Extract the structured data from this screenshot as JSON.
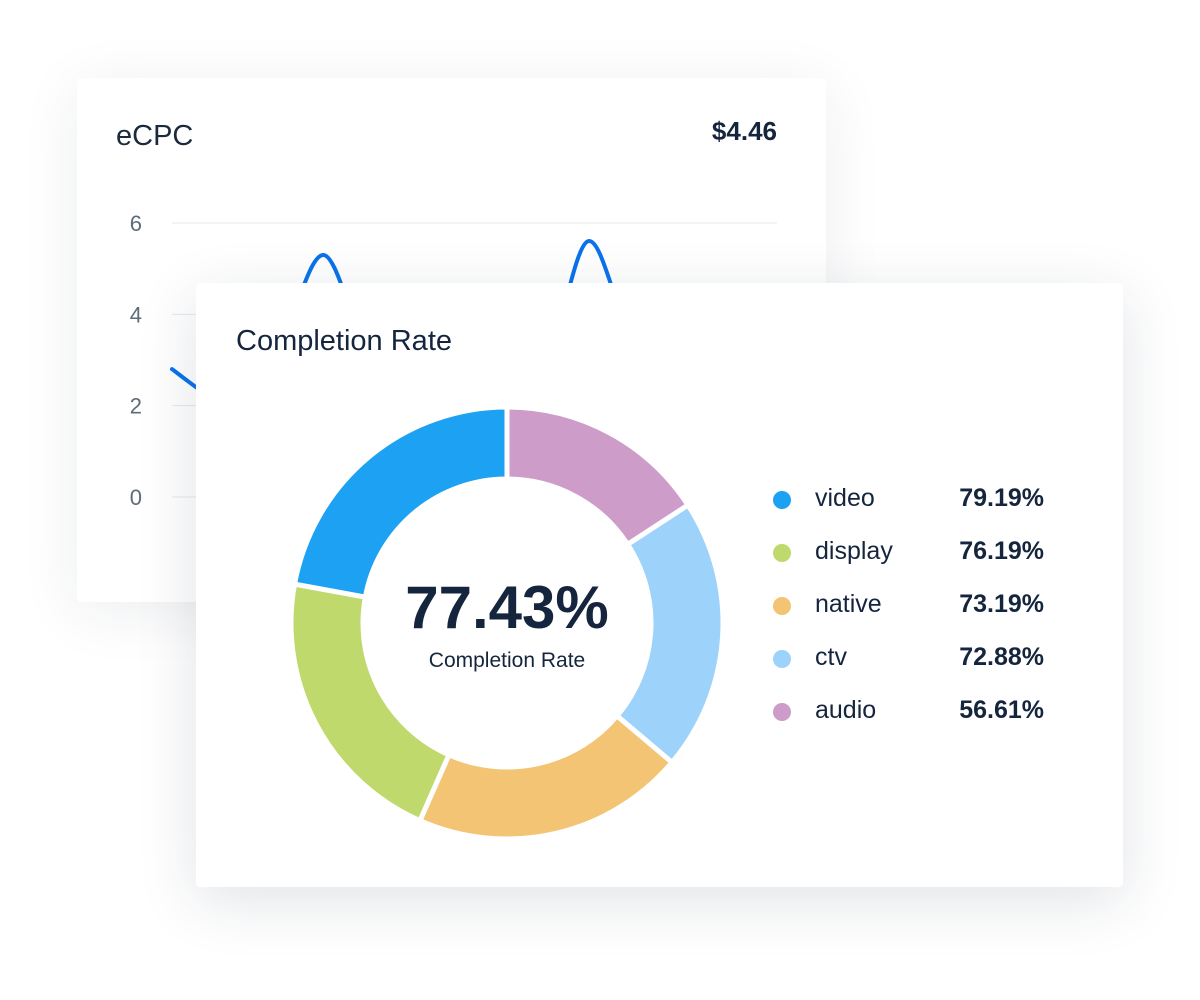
{
  "ecpc_card": {
    "title": "eCPC",
    "value": "$4.46",
    "chart_data": {
      "type": "line",
      "y_ticks": [
        "6",
        "4",
        "2",
        "0"
      ],
      "ylim": [
        0,
        6
      ],
      "grid": true,
      "line_color": "#0a73eb",
      "values": [
        2.8,
        2.2,
        1.8,
        3.6,
        5.3,
        3.6,
        2.8,
        4.6,
        3.0,
        2.4,
        3.2,
        5.6,
        3.8,
        2.6,
        3.0,
        2.5,
        2.8
      ]
    }
  },
  "completion_card": {
    "title": "Completion Rate",
    "center_value": "77.43%",
    "center_label": "Completion Rate",
    "chart_data": {
      "type": "pie",
      "donut": true,
      "legend_position": "right",
      "series": [
        {
          "name": "video",
          "value": 79.19,
          "label": "79.19%",
          "color": "#1da1f2"
        },
        {
          "name": "display",
          "value": 76.19,
          "label": "76.19%",
          "color": "#bfd96c"
        },
        {
          "name": "native",
          "value": 73.19,
          "label": "73.19%",
          "color": "#f2c474"
        },
        {
          "name": "ctv",
          "value": 72.88,
          "label": "72.88%",
          "color": "#9dd2fa"
        },
        {
          "name": "audio",
          "value": 56.61,
          "label": "56.61%",
          "color": "#cd9cc9"
        }
      ]
    }
  }
}
